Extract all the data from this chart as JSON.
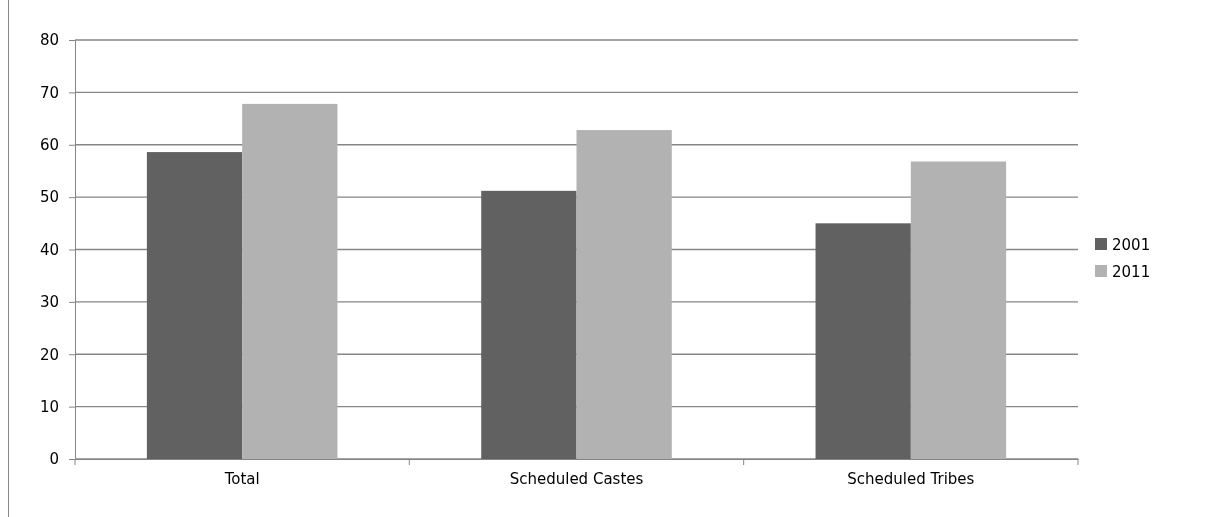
{
  "chart_data": {
    "type": "bar",
    "categories": [
      "Total",
      "Scheduled Castes",
      "Scheduled Tribes"
    ],
    "series": [
      {
        "name": "2001",
        "color": "#616161",
        "values": [
          58.6,
          51.2,
          45.0
        ]
      },
      {
        "name": "2011",
        "color": "#b2b2b2",
        "values": [
          67.8,
          62.8,
          56.8
        ]
      }
    ],
    "ylim": [
      0,
      80
    ],
    "yticks": [
      0,
      10,
      20,
      30,
      40,
      50,
      60,
      70,
      80
    ],
    "grid": "y",
    "legend": "right"
  }
}
